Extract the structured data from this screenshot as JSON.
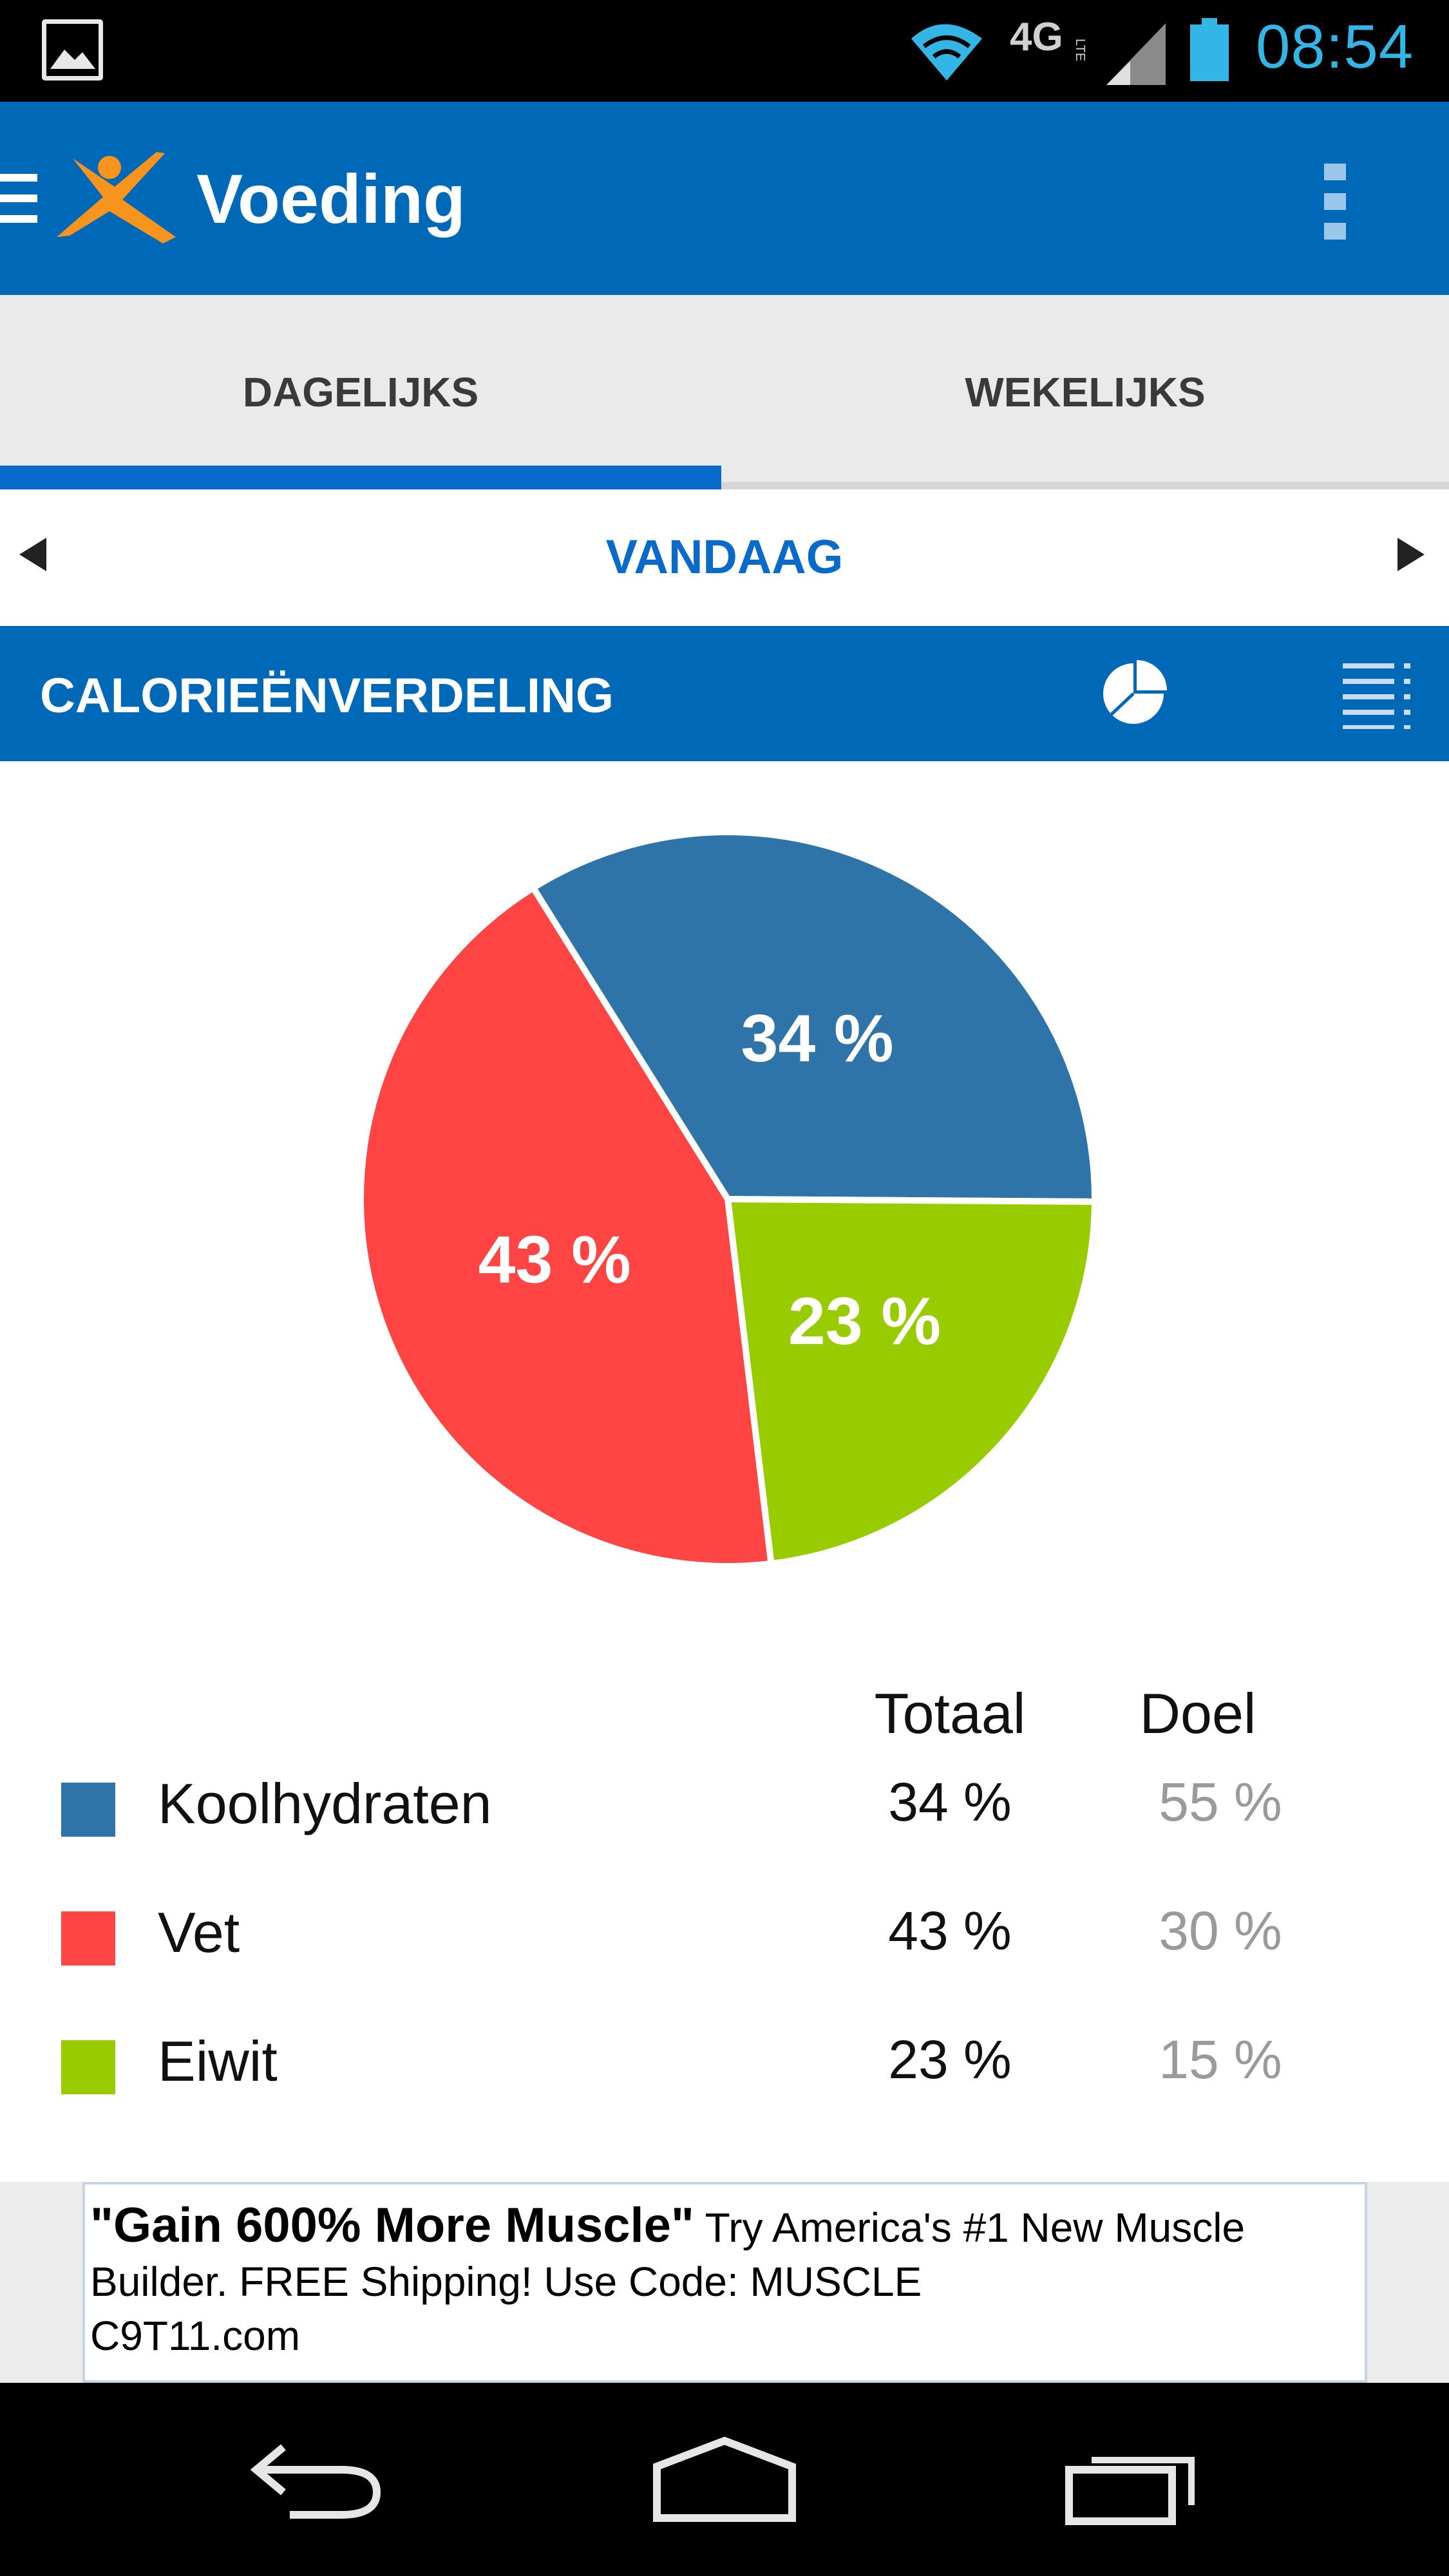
{
  "status_bar": {
    "time": "08:54",
    "network": "4G",
    "network_sub": "LTE",
    "icons": [
      "gallery-icon",
      "wifi-icon",
      "cell-signal-icon",
      "battery-icon"
    ]
  },
  "action_bar": {
    "title": "Voeding",
    "icons": [
      "menu-icon",
      "app-logo-icon",
      "overflow-menu-icon"
    ]
  },
  "tabs": [
    {
      "label": "DAGELIJKS",
      "selected": true
    },
    {
      "label": "WEKELIJKS",
      "selected": false
    }
  ],
  "date_nav": {
    "label": "VANDAAG"
  },
  "section": {
    "title": "CALORIEËNVERDELING",
    "icons": [
      "pie-view-icon",
      "list-view-icon"
    ]
  },
  "chart_data": {
    "type": "pie",
    "categories": [
      "Koolhydraten",
      "Vet",
      "Eiwit"
    ],
    "values": [
      34,
      43,
      23
    ],
    "labels": [
      "34 %",
      "43 %",
      "23 %"
    ],
    "colors": [
      "#2e74a8",
      "#ff4444",
      "#99cc00"
    ]
  },
  "table": {
    "headers": {
      "total": "Totaal",
      "goal": "Doel"
    },
    "rows": [
      {
        "name": "Koolhydraten",
        "total": "34 %",
        "goal": "55 %",
        "color": "#2e74a8"
      },
      {
        "name": "Vet",
        "total": "43 %",
        "goal": "30 %",
        "color": "#ff4444"
      },
      {
        "name": "Eiwit",
        "total": "23 %",
        "goal": "15 %",
        "color": "#99cc00"
      }
    ]
  },
  "ad": {
    "headline": "\"Gain 600% More Muscle\"",
    "body": "Try America's #1 New Muscle Builder. FREE Shipping! Use Code: MUSCLE",
    "url": "C9T11.com"
  },
  "nav_bar": {
    "icons": [
      "back-icon",
      "home-icon",
      "recent-apps-icon"
    ]
  }
}
